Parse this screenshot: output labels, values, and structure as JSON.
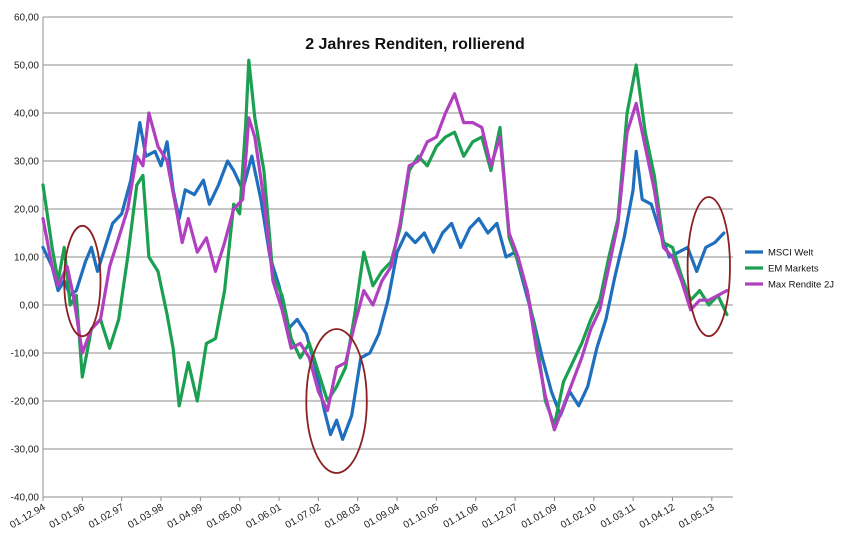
{
  "chart_data": {
    "type": "line",
    "title": "2 Jahres Renditen, rollierend",
    "xlabel": "",
    "ylabel": "",
    "ylim": [
      -40,
      60
    ],
    "yticks": [
      60,
      50,
      40,
      30,
      20,
      10,
      0,
      -10,
      -20,
      -30,
      -40
    ],
    "ytick_labels": [
      "60,00",
      "50,00",
      "40,00",
      "30,00",
      "20,00",
      "10,00",
      "0,00",
      "-10,00",
      "-20,00",
      "-30,00",
      "-40,00"
    ],
    "x_start": "1994-12-01",
    "x_end": "2013-12-01",
    "xticks": [
      "01.12.94",
      "01.01.96",
      "01.02.97",
      "01.03.98",
      "01.04.99",
      "01.05.00",
      "01.06.01",
      "01.07.02",
      "01.08.03",
      "01.09.04",
      "01.10.05",
      "01.11.06",
      "01.12.07",
      "01.01.09",
      "01.02.10",
      "01.03.11",
      "01.04.12",
      "01.05.13"
    ],
    "grid": true,
    "legend_position": "right",
    "series": [
      {
        "name": "MSCI Welt",
        "color": "#1f6fbf",
        "points": [
          [
            "1994-12",
            12
          ],
          [
            "1995-03",
            8
          ],
          [
            "1995-05",
            3
          ],
          [
            "1995-07",
            5
          ],
          [
            "1995-09",
            2
          ],
          [
            "1995-11",
            3
          ],
          [
            "1996-02",
            9
          ],
          [
            "1996-04",
            12
          ],
          [
            "1996-06",
            7
          ],
          [
            "1996-08",
            11
          ],
          [
            "1996-11",
            17
          ],
          [
            "1997-02",
            19
          ],
          [
            "1997-05",
            26
          ],
          [
            "1997-08",
            38
          ],
          [
            "1997-10",
            31
          ],
          [
            "1998-01",
            32
          ],
          [
            "1998-03",
            29
          ],
          [
            "1998-05",
            34
          ],
          [
            "1998-07",
            24
          ],
          [
            "1998-09",
            18
          ],
          [
            "1998-11",
            24
          ],
          [
            "1999-02",
            23
          ],
          [
            "1999-05",
            26
          ],
          [
            "1999-07",
            21
          ],
          [
            "1999-10",
            25
          ],
          [
            "2000-01",
            30
          ],
          [
            "2000-03",
            28
          ],
          [
            "2000-06",
            24
          ],
          [
            "2000-09",
            31
          ],
          [
            "2000-12",
            22
          ],
          [
            "2001-03",
            10
          ],
          [
            "2001-06",
            4
          ],
          [
            "2001-09",
            -5
          ],
          [
            "2001-12",
            -3
          ],
          [
            "2002-03",
            -6
          ],
          [
            "2002-06",
            -13
          ],
          [
            "2002-09",
            -22
          ],
          [
            "2002-11",
            -27
          ],
          [
            "2003-01",
            -24
          ],
          [
            "2003-03",
            -28
          ],
          [
            "2003-06",
            -23
          ],
          [
            "2003-09",
            -11
          ],
          [
            "2003-12",
            -10
          ],
          [
            "2004-03",
            -6
          ],
          [
            "2004-06",
            1
          ],
          [
            "2004-09",
            11
          ],
          [
            "2004-12",
            15
          ],
          [
            "2005-03",
            13
          ],
          [
            "2005-06",
            15
          ],
          [
            "2005-09",
            11
          ],
          [
            "2005-12",
            15
          ],
          [
            "2006-03",
            17
          ],
          [
            "2006-06",
            12
          ],
          [
            "2006-09",
            16
          ],
          [
            "2006-12",
            18
          ],
          [
            "2007-03",
            15
          ],
          [
            "2007-06",
            17
          ],
          [
            "2007-09",
            10
          ],
          [
            "2007-12",
            11
          ],
          [
            "2008-03",
            4
          ],
          [
            "2008-06",
            -3
          ],
          [
            "2008-09",
            -11
          ],
          [
            "2008-12",
            -18
          ],
          [
            "2009-03",
            -23
          ],
          [
            "2009-06",
            -18
          ],
          [
            "2009-09",
            -21
          ],
          [
            "2009-12",
            -17
          ],
          [
            "2010-03",
            -9
          ],
          [
            "2010-06",
            -3
          ],
          [
            "2010-09",
            6
          ],
          [
            "2010-12",
            14
          ],
          [
            "2011-03",
            24
          ],
          [
            "2011-04",
            32
          ],
          [
            "2011-06",
            22
          ],
          [
            "2011-09",
            21
          ],
          [
            "2011-12",
            15
          ],
          [
            "2012-03",
            10
          ],
          [
            "2012-06",
            11
          ],
          [
            "2012-09",
            12
          ],
          [
            "2012-12",
            7
          ],
          [
            "2013-03",
            12
          ],
          [
            "2013-06",
            13
          ],
          [
            "2013-09",
            15
          ]
        ]
      },
      {
        "name": "EM Markets",
        "color": "#1aa050",
        "points": [
          [
            "1994-12",
            25
          ],
          [
            "1995-03",
            12
          ],
          [
            "1995-05",
            5
          ],
          [
            "1995-07",
            12
          ],
          [
            "1995-09",
            0
          ],
          [
            "1995-11",
            2
          ],
          [
            "1996-01",
            -15
          ],
          [
            "1996-04",
            -5
          ],
          [
            "1996-07",
            -3
          ],
          [
            "1996-10",
            -9
          ],
          [
            "1997-01",
            -3
          ],
          [
            "1997-04",
            10
          ],
          [
            "1997-07",
            25
          ],
          [
            "1997-09",
            27
          ],
          [
            "1997-11",
            10
          ],
          [
            "1998-02",
            7
          ],
          [
            "1998-05",
            -2
          ],
          [
            "1998-07",
            -9
          ],
          [
            "1998-09",
            -21
          ],
          [
            "1998-12",
            -12
          ],
          [
            "1999-03",
            -20
          ],
          [
            "1999-06",
            -8
          ],
          [
            "1999-09",
            -7
          ],
          [
            "1999-12",
            3
          ],
          [
            "2000-03",
            21
          ],
          [
            "2000-05",
            19
          ],
          [
            "2000-07",
            38
          ],
          [
            "2000-08",
            51
          ],
          [
            "2000-10",
            39
          ],
          [
            "2001-01",
            28
          ],
          [
            "2001-04",
            6
          ],
          [
            "2001-07",
            2
          ],
          [
            "2001-10",
            -7
          ],
          [
            "2002-01",
            -11
          ],
          [
            "2002-04",
            -8
          ],
          [
            "2002-07",
            -14
          ],
          [
            "2002-10",
            -20
          ],
          [
            "2003-01",
            -17
          ],
          [
            "2003-04",
            -13
          ],
          [
            "2003-07",
            -2
          ],
          [
            "2003-10",
            11
          ],
          [
            "2004-01",
            4
          ],
          [
            "2004-04",
            7
          ],
          [
            "2004-07",
            9
          ],
          [
            "2004-10",
            16
          ],
          [
            "2005-01",
            28
          ],
          [
            "2005-04",
            31
          ],
          [
            "2005-07",
            29
          ],
          [
            "2005-10",
            33
          ],
          [
            "2006-01",
            35
          ],
          [
            "2006-04",
            36
          ],
          [
            "2006-07",
            31
          ],
          [
            "2006-10",
            34
          ],
          [
            "2007-01",
            35
          ],
          [
            "2007-04",
            28
          ],
          [
            "2007-07",
            37
          ],
          [
            "2007-10",
            14
          ],
          [
            "2008-01",
            9
          ],
          [
            "2008-04",
            3
          ],
          [
            "2008-07",
            -7
          ],
          [
            "2008-10",
            -20
          ],
          [
            "2009-01",
            -25
          ],
          [
            "2009-04",
            -16
          ],
          [
            "2009-07",
            -12
          ],
          [
            "2009-10",
            -8
          ],
          [
            "2010-01",
            -3
          ],
          [
            "2010-04",
            1
          ],
          [
            "2010-07",
            10
          ],
          [
            "2010-10",
            18
          ],
          [
            "2011-01",
            40
          ],
          [
            "2011-04",
            50
          ],
          [
            "2011-07",
            36
          ],
          [
            "2011-10",
            27
          ],
          [
            "2012-01",
            13
          ],
          [
            "2012-04",
            12
          ],
          [
            "2012-07",
            6
          ],
          [
            "2012-10",
            1
          ],
          [
            "2013-01",
            3
          ],
          [
            "2013-04",
            0
          ],
          [
            "2013-07",
            2
          ],
          [
            "2013-10",
            -2
          ]
        ]
      },
      {
        "name": "Max Rendite 2J",
        "color": "#b040c0",
        "points": [
          [
            "1994-12",
            18
          ],
          [
            "1995-03",
            8
          ],
          [
            "1995-05",
            4
          ],
          [
            "1995-08",
            8
          ],
          [
            "1995-10",
            2
          ],
          [
            "1996-01",
            -10
          ],
          [
            "1996-04",
            -5
          ],
          [
            "1996-07",
            -3
          ],
          [
            "1996-10",
            8
          ],
          [
            "1997-01",
            14
          ],
          [
            "1997-04",
            20
          ],
          [
            "1997-07",
            31
          ],
          [
            "1997-09",
            29
          ],
          [
            "1997-11",
            40
          ],
          [
            "1998-02",
            33
          ],
          [
            "1998-05",
            30
          ],
          [
            "1998-08",
            20
          ],
          [
            "1998-10",
            13
          ],
          [
            "1998-12",
            18
          ],
          [
            "1999-03",
            11
          ],
          [
            "1999-06",
            14
          ],
          [
            "1999-09",
            7
          ],
          [
            "1999-12",
            13
          ],
          [
            "2000-03",
            20
          ],
          [
            "2000-06",
            22
          ],
          [
            "2000-08",
            39
          ],
          [
            "2000-10",
            35
          ],
          [
            "2001-01",
            22
          ],
          [
            "2001-04",
            5
          ],
          [
            "2001-07",
            -1
          ],
          [
            "2001-10",
            -9
          ],
          [
            "2002-01",
            -8
          ],
          [
            "2002-04",
            -11
          ],
          [
            "2002-07",
            -18
          ],
          [
            "2002-10",
            -22
          ],
          [
            "2003-01",
            -13
          ],
          [
            "2003-04",
            -12
          ],
          [
            "2003-07",
            -4
          ],
          [
            "2003-10",
            3
          ],
          [
            "2004-01",
            0
          ],
          [
            "2004-04",
            5
          ],
          [
            "2004-07",
            8
          ],
          [
            "2004-10",
            17
          ],
          [
            "2005-01",
            29
          ],
          [
            "2005-04",
            30
          ],
          [
            "2005-07",
            34
          ],
          [
            "2005-10",
            35
          ],
          [
            "2006-01",
            40
          ],
          [
            "2006-04",
            44
          ],
          [
            "2006-07",
            38
          ],
          [
            "2006-10",
            38
          ],
          [
            "2007-01",
            37
          ],
          [
            "2007-04",
            29
          ],
          [
            "2007-07",
            35
          ],
          [
            "2007-10",
            15
          ],
          [
            "2008-01",
            10
          ],
          [
            "2008-04",
            3
          ],
          [
            "2008-07",
            -9
          ],
          [
            "2008-10",
            -19
          ],
          [
            "2009-01",
            -26
          ],
          [
            "2009-04",
            -21
          ],
          [
            "2009-07",
            -16
          ],
          [
            "2009-10",
            -11
          ],
          [
            "2010-01",
            -5
          ],
          [
            "2010-04",
            -1
          ],
          [
            "2010-07",
            8
          ],
          [
            "2010-10",
            17
          ],
          [
            "2011-01",
            36
          ],
          [
            "2011-04",
            42
          ],
          [
            "2011-07",
            33
          ],
          [
            "2011-10",
            24
          ],
          [
            "2012-01",
            12
          ],
          [
            "2012-04",
            10
          ],
          [
            "2012-07",
            5
          ],
          [
            "2012-10",
            -1
          ],
          [
            "2013-01",
            1
          ],
          [
            "2013-04",
            1
          ],
          [
            "2013-07",
            2
          ],
          [
            "2013-10",
            3
          ]
        ]
      }
    ],
    "annotations": [
      {
        "shape": "ellipse",
        "color": "#8b2020",
        "center_date": "1996-01",
        "center_value": 5,
        "width_months": 12,
        "height_value": 23
      },
      {
        "shape": "ellipse",
        "color": "#8b2020",
        "center_date": "2003-01",
        "center_value": -20,
        "width_months": 20,
        "height_value": 30
      },
      {
        "shape": "ellipse",
        "color": "#8b2020",
        "center_date": "2013-04",
        "center_value": 8,
        "width_months": 14,
        "height_value": 29
      }
    ]
  }
}
